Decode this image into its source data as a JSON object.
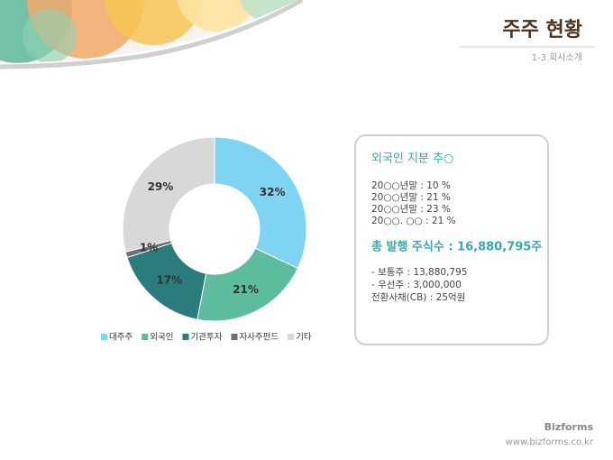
{
  "header": {
    "title": "주주 현황",
    "subtitle": "1-3 회사소개"
  },
  "chart_data": {
    "type": "pie",
    "categories": [
      "대주주",
      "외국인",
      "기관투자",
      "자사주펀드",
      "기타"
    ],
    "values": [
      32,
      21,
      17,
      1,
      29
    ],
    "value_labels": [
      "32%",
      "21%",
      "17%",
      "1%",
      "29%"
    ],
    "colors": [
      "#7fd4f2",
      "#5dbb9e",
      "#2b7c7c",
      "#6e6e6e",
      "#d8d8d8"
    ],
    "legend": "bottom"
  },
  "panel": {
    "heading": "외국인 지분 추○",
    "lines": [
      "20○○년말 :  10  %",
      "20○○년말 :  21  %",
      "20○○년말 :  23  %",
      "20○○. ○○ :  21 %"
    ],
    "total": "총 발행 주식수 : 16,880,795주",
    "details": [
      "- 보통주 : 13,880,795",
      "- 우선주 :  3,000,000",
      "전환사채(CB)  : 25억원"
    ]
  },
  "footer": {
    "brand": "Bizforms",
    "url": "www.bizforms.co.kr"
  }
}
